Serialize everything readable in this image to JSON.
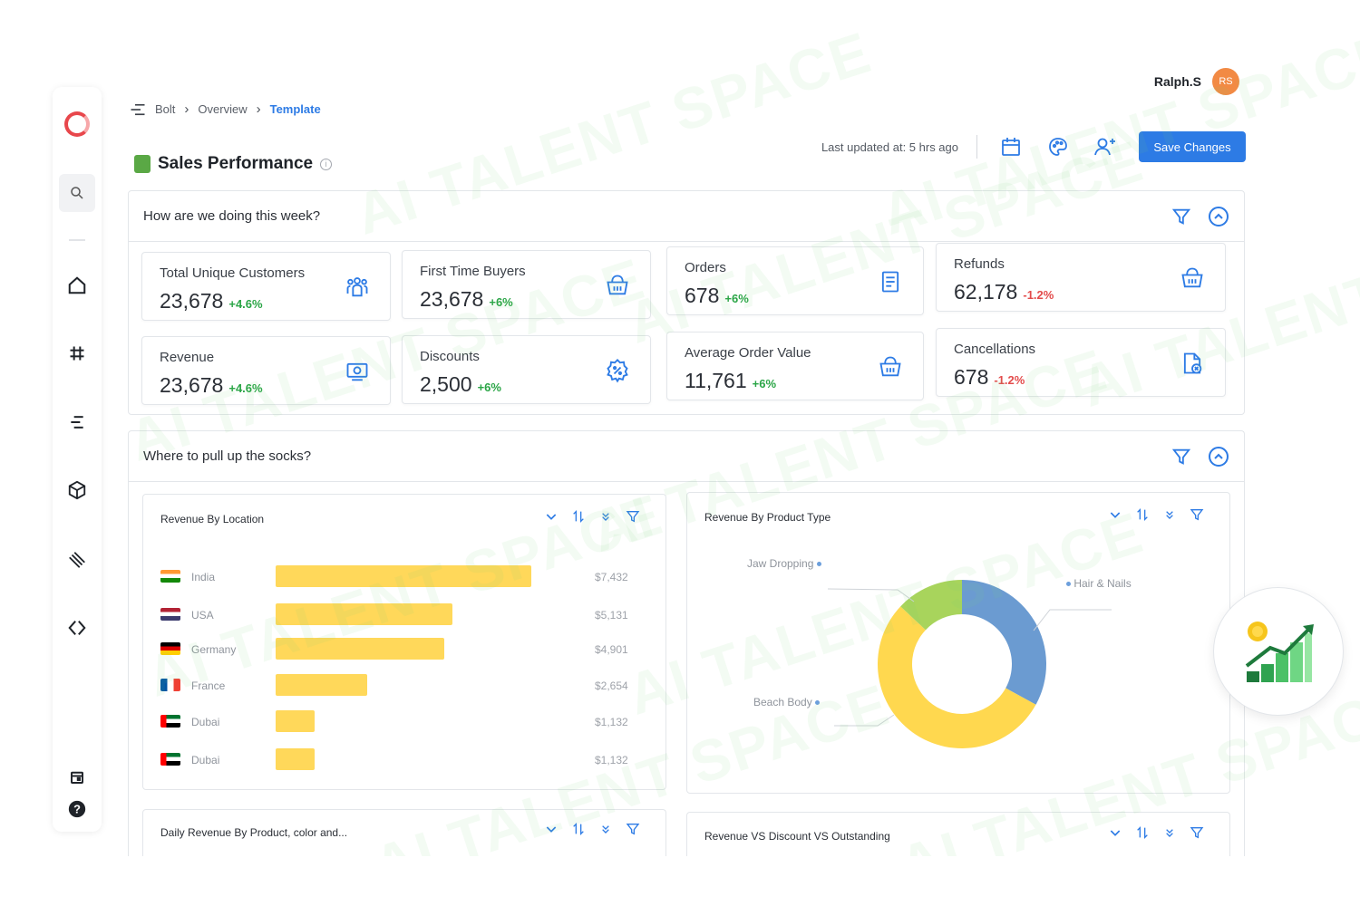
{
  "user": {
    "name": "Ralph.S",
    "initials": "RS"
  },
  "breadcrumb": {
    "items": [
      "Bolt",
      "Overview",
      "Template"
    ]
  },
  "page": {
    "title": "Sales Performance",
    "last_updated": "Last updated at: 5 hrs ago",
    "save_label": "Save Changes"
  },
  "section_week": {
    "question": "How are we doing this week?",
    "stats": [
      {
        "label": "Total Unique Customers",
        "value": "23,678",
        "delta": "+4.6%",
        "trend": "up",
        "icon": "customers-icon"
      },
      {
        "label": "First Time Buyers",
        "value": "23,678",
        "delta": "+6%",
        "trend": "up",
        "icon": "basket-icon"
      },
      {
        "label": "Orders",
        "value": "678",
        "delta": "+6%",
        "trend": "up",
        "icon": "receipt-icon"
      },
      {
        "label": "Refunds",
        "value": "62,178",
        "delta": "-1.2%",
        "trend": "down",
        "icon": "basket-icon"
      },
      {
        "label": "Revenue",
        "value": "23,678",
        "delta": "+4.6%",
        "trend": "up",
        "icon": "cash-icon"
      },
      {
        "label": "Discounts",
        "value": "2,500",
        "delta": "+6%",
        "trend": "up",
        "icon": "discount-icon"
      },
      {
        "label": "Average Order Value",
        "value": "11,761",
        "delta": "+6%",
        "trend": "up",
        "icon": "basket-icon"
      },
      {
        "label": "Cancellations",
        "value": "678",
        "delta": "-1.2%",
        "trend": "down",
        "icon": "cancel-document-icon"
      }
    ]
  },
  "section_socks": {
    "question": "Where to pull up the socks?"
  },
  "cards": {
    "revenue_location": {
      "title": "Revenue By Location"
    },
    "revenue_product": {
      "title": "Revenue By Product Type"
    },
    "daily_revenue": {
      "title": "Daily Revenue By Product, color and..."
    },
    "revenue_vs_discount": {
      "title": "Revenue VS Discount VS Outstanding"
    }
  },
  "chart_data": [
    {
      "type": "bar",
      "orientation": "horizontal",
      "title": "Revenue By Location",
      "categories": [
        "India",
        "USA",
        "Germany",
        "France",
        "Dubai",
        "Dubai"
      ],
      "values": [
        7432,
        5131,
        4901,
        2654,
        1132,
        1132
      ],
      "value_labels": [
        "$7,432",
        "$5,131",
        "$4,901",
        "$2,654",
        "$1,132",
        "$1,132"
      ],
      "bar_color": "#ffd85a"
    },
    {
      "type": "pie",
      "title": "Revenue By Product Type",
      "donut": true,
      "slices": [
        {
          "name": "Hair & Nails",
          "value": 33,
          "color": "#6b9bd1"
        },
        {
          "name": "Beach Body",
          "value": 54,
          "color": "#ffd84f"
        },
        {
          "name": "Jaw Dropping",
          "value": 13,
          "color": "#a8d45c"
        }
      ]
    }
  ],
  "colors": {
    "accent": "#2d7be5",
    "positive": "#2aa546",
    "negative": "#e34b4b"
  }
}
